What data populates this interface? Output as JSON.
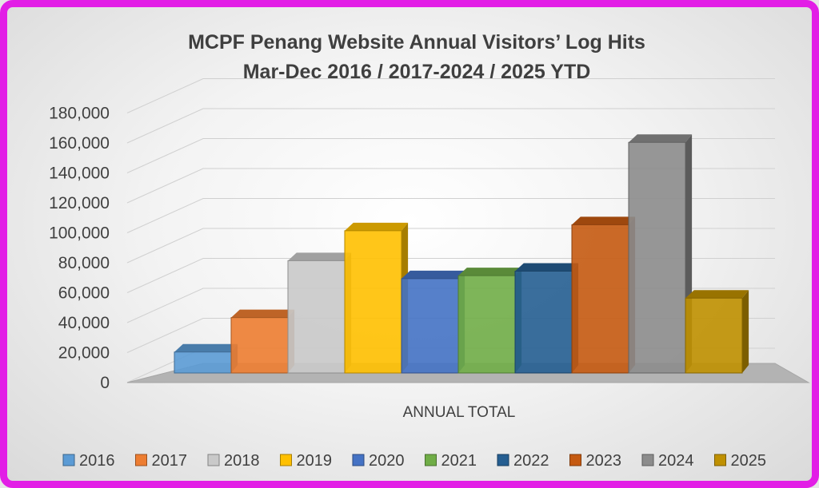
{
  "chart_data": {
    "type": "bar",
    "title": "MCPF Penang Website Annual Visitors’ Log Hits",
    "subtitle": "Mar-Dec 2016 / 2017-2024 / 2025 YTD",
    "categories": [
      "ANNUAL TOTAL"
    ],
    "series": [
      {
        "name": "2016",
        "values": [
          14000
        ],
        "color": "#5b9bd5"
      },
      {
        "name": "2017",
        "values": [
          37000
        ],
        "color": "#ed7d31"
      },
      {
        "name": "2018",
        "values": [
          75000
        ],
        "color": "#c9c9c9"
      },
      {
        "name": "2019",
        "values": [
          95000
        ],
        "color": "#ffc000"
      },
      {
        "name": "2020",
        "values": [
          63000
        ],
        "color": "#4472c4"
      },
      {
        "name": "2021",
        "values": [
          65000
        ],
        "color": "#70ad47"
      },
      {
        "name": "2022",
        "values": [
          68000
        ],
        "color": "#255e91"
      },
      {
        "name": "2023",
        "values": [
          99000
        ],
        "color": "#c55a11"
      },
      {
        "name": "2024",
        "values": [
          154000
        ],
        "color": "#8c8c8c"
      },
      {
        "name": "2025",
        "values": [
          50000
        ],
        "color": "#bf9000"
      }
    ],
    "yticks": [
      "180,000",
      "160,000",
      "140,000",
      "120,000",
      "100,000",
      "80,000",
      "60,000",
      "40,000",
      "20,000",
      "0"
    ],
    "ylim": [
      0,
      180000
    ],
    "legend_position": "bottom",
    "grid": true,
    "style": "3d-clustered-column"
  },
  "colors": {
    "frame_border": "#e21ee6",
    "title": "#3f3f3f",
    "floor": "#b3b3b3",
    "gridline": "#d0d0d0"
  }
}
